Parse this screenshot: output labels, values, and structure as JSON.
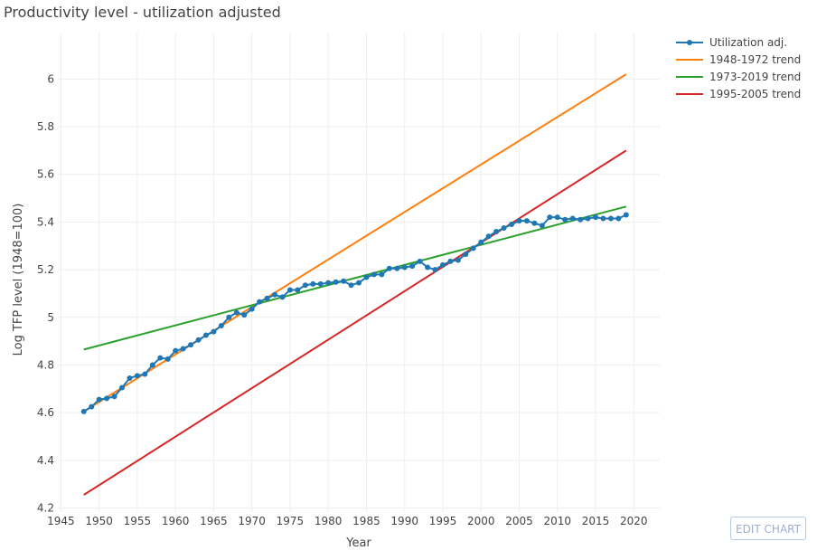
{
  "chart_data": {
    "type": "line",
    "title": "Productivity level - utilization adjusted",
    "xlabel": "Year",
    "ylabel": "Log TFP level (1948=100)",
    "xlim": [
      1944.6,
      2023.4
    ],
    "ylim": [
      4.183,
      6.195
    ],
    "x_ticks": [
      1945,
      1950,
      1955,
      1960,
      1965,
      1970,
      1975,
      1980,
      1985,
      1990,
      1995,
      2000,
      2005,
      2010,
      2015,
      2020
    ],
    "y_ticks": [
      4.2,
      4.4,
      4.6,
      4.8,
      5,
      5.2,
      5.4,
      5.6,
      5.8,
      6
    ],
    "y_tick_labels": [
      "4.2",
      "4.4",
      "4.6",
      "4.8",
      "5",
      "5.2",
      "5.4",
      "5.6",
      "5.8",
      "6"
    ],
    "grid": true,
    "legend_position": "top-right",
    "series": [
      {
        "name": "Utilization adj.",
        "color": "#1f77b4",
        "mode": "lines+markers",
        "x": [
          1948,
          1949,
          1950,
          1951,
          1952,
          1953,
          1954,
          1955,
          1956,
          1957,
          1958,
          1959,
          1960,
          1961,
          1962,
          1963,
          1964,
          1965,
          1966,
          1967,
          1968,
          1969,
          1970,
          1971,
          1972,
          1973,
          1974,
          1975,
          1976,
          1977,
          1978,
          1979,
          1980,
          1981,
          1982,
          1983,
          1984,
          1985,
          1986,
          1987,
          1988,
          1989,
          1990,
          1991,
          1992,
          1993,
          1994,
          1995,
          1996,
          1997,
          1998,
          1999,
          2000,
          2001,
          2002,
          2003,
          2004,
          2005,
          2006,
          2007,
          2008,
          2009,
          2010,
          2011,
          2012,
          2013,
          2014,
          2015,
          2016,
          2017,
          2018,
          2019
        ],
        "y": [
          4.605,
          4.625,
          4.655,
          4.66,
          4.668,
          4.705,
          4.745,
          4.755,
          4.762,
          4.8,
          4.83,
          4.825,
          4.86,
          4.868,
          4.885,
          4.905,
          4.925,
          4.94,
          4.965,
          5.0,
          5.02,
          5.01,
          5.035,
          5.065,
          5.08,
          5.095,
          5.085,
          5.115,
          5.115,
          5.135,
          5.14,
          5.14,
          5.145,
          5.148,
          5.152,
          5.135,
          5.145,
          5.168,
          5.18,
          5.18,
          5.205,
          5.205,
          5.21,
          5.215,
          5.235,
          5.21,
          5.2,
          5.22,
          5.235,
          5.24,
          5.265,
          5.29,
          5.315,
          5.34,
          5.36,
          5.375,
          5.39,
          5.405,
          5.405,
          5.395,
          5.385,
          5.42,
          5.42,
          5.41,
          5.415,
          5.41,
          5.415,
          5.42,
          5.415,
          5.415,
          5.415,
          5.43
        ]
      },
      {
        "name": "1948-1972 trend",
        "color": "#ff7f0e",
        "mode": "lines",
        "x": [
          1948,
          2019
        ],
        "y": [
          4.605,
          6.02
        ]
      },
      {
        "name": "1973-2019 trend",
        "color": "#2ca02c",
        "mode": "lines",
        "x": [
          1948,
          2019
        ],
        "y": [
          4.865,
          5.465
        ]
      },
      {
        "name": "1995-2005 trend",
        "color": "#d62728",
        "mode": "lines",
        "x": [
          1948,
          2019
        ],
        "y": [
          4.255,
          5.7
        ]
      }
    ]
  },
  "ui": {
    "edit_chart_label": "EDIT CHART"
  }
}
